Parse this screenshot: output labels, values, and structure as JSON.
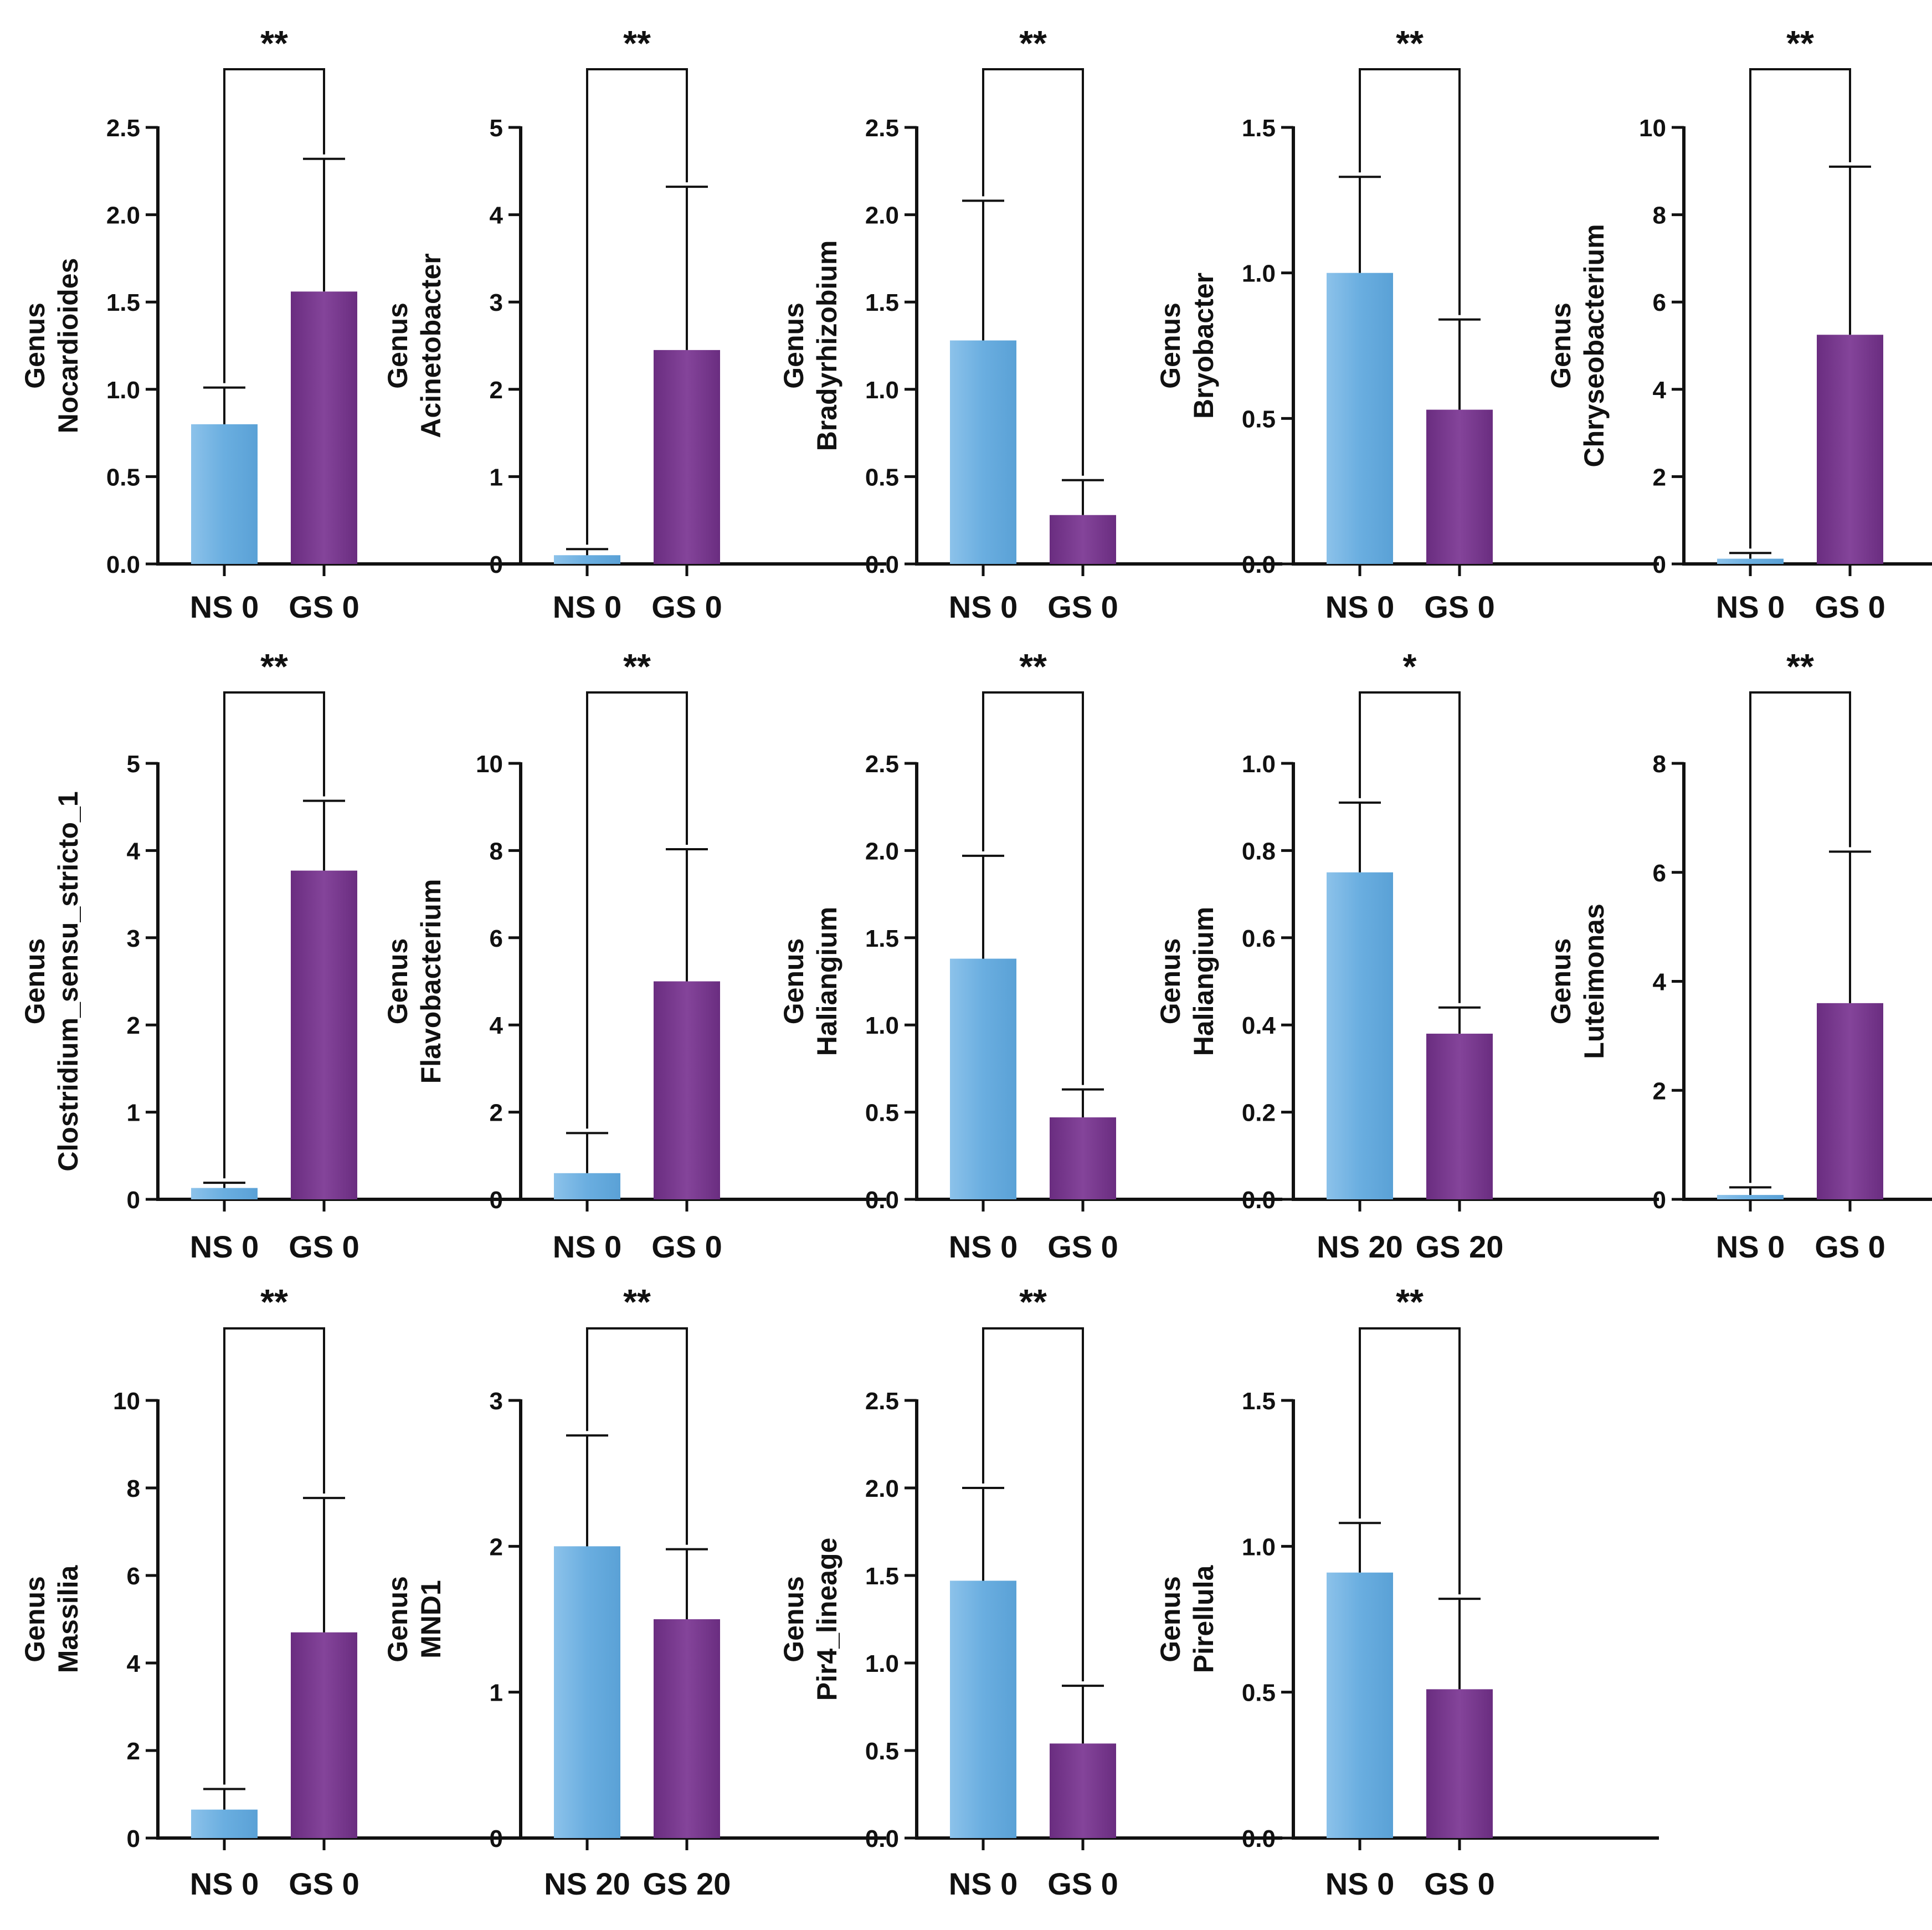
{
  "colors": {
    "ns": "#6aaee0",
    "gs": "#7b3b8c",
    "axis": "#111111"
  },
  "chart_data": [
    {
      "type": "bar",
      "ylabel_line1": "Genus",
      "ylabel_line2": "Nocardioides",
      "categories": [
        "NS 0",
        "GS 0"
      ],
      "values": [
        0.8,
        1.56
      ],
      "errors": [
        1.01,
        2.32
      ],
      "ylim": [
        0,
        2.5
      ],
      "ticks": [
        0,
        0.5,
        1,
        1.5,
        2,
        2.5
      ],
      "tick_labels": [
        "0.0",
        "0.5",
        "1.0",
        "1.5",
        "2.0",
        "2.5"
      ],
      "significance": "**"
    },
    {
      "type": "bar",
      "ylabel_line1": "Genus",
      "ylabel_line2": "Acinetobacter",
      "categories": [
        "NS 0",
        "GS 0"
      ],
      "values": [
        0.1,
        2.45
      ],
      "errors": [
        0.17,
        4.32
      ],
      "ylim": [
        0,
        5
      ],
      "ticks": [
        0,
        1,
        2,
        3,
        4,
        5
      ],
      "tick_labels": [
        "0",
        "1",
        "2",
        "3",
        "4",
        "5"
      ],
      "significance": "**"
    },
    {
      "type": "bar",
      "ylabel_line1": "Genus",
      "ylabel_line2": "Bradyrhizobium",
      "categories": [
        "NS 0",
        "GS 0"
      ],
      "values": [
        1.28,
        0.28
      ],
      "errors": [
        2.08,
        0.48
      ],
      "ylim": [
        0,
        2.5
      ],
      "ticks": [
        0,
        0.5,
        1,
        1.5,
        2,
        2.5
      ],
      "tick_labels": [
        "0.0",
        "0.5",
        "1.0",
        "1.5",
        "2.0",
        "2.5"
      ],
      "significance": "**"
    },
    {
      "type": "bar",
      "ylabel_line1": "Genus",
      "ylabel_line2": "Bryobacter",
      "categories": [
        "NS 0",
        "GS 0"
      ],
      "values": [
        1.0,
        0.53
      ],
      "errors": [
        1.33,
        0.84
      ],
      "ylim": [
        0,
        1.5
      ],
      "ticks": [
        0,
        0.5,
        1,
        1.5
      ],
      "tick_labels": [
        "0.0",
        "0.5",
        "1.0",
        "1.5"
      ],
      "significance": "**"
    },
    {
      "type": "bar",
      "ylabel_line1": "Genus",
      "ylabel_line2": "Chryseobacterium",
      "categories": [
        "NS 0",
        "GS 0"
      ],
      "values": [
        0.12,
        5.25
      ],
      "errors": [
        0.25,
        9.1
      ],
      "ylim": [
        0,
        10
      ],
      "ticks": [
        0,
        2,
        4,
        6,
        8,
        10
      ],
      "tick_labels": [
        "0",
        "2",
        "4",
        "6",
        "8",
        "10"
      ],
      "significance": "**"
    },
    {
      "type": "bar",
      "ylabel_line1": "Genus",
      "ylabel_line2": "Clostridium_sensu_stricto_1",
      "categories": [
        "NS 0",
        "GS 0"
      ],
      "values": [
        0.13,
        3.77
      ],
      "errors": [
        0.19,
        4.57
      ],
      "ylim": [
        0,
        5
      ],
      "ticks": [
        0,
        1,
        2,
        3,
        4,
        5
      ],
      "tick_labels": [
        "0",
        "1",
        "2",
        "3",
        "4",
        "5"
      ],
      "significance": "**"
    },
    {
      "type": "bar",
      "ylabel_line1": "Genus",
      "ylabel_line2": "Flavobacterium",
      "categories": [
        "NS 0",
        "GS 0"
      ],
      "values": [
        0.6,
        5.0
      ],
      "errors": [
        1.52,
        8.03
      ],
      "ylim": [
        0,
        10
      ],
      "ticks": [
        0,
        2,
        4,
        6,
        8,
        10
      ],
      "tick_labels": [
        "0",
        "2",
        "4",
        "6",
        "8",
        "10"
      ],
      "significance": "**"
    },
    {
      "type": "bar",
      "ylabel_line1": "Genus",
      "ylabel_line2": "Haliangium",
      "categories": [
        "NS 0",
        "GS 0"
      ],
      "values": [
        1.38,
        0.47
      ],
      "errors": [
        1.97,
        0.63
      ],
      "ylim": [
        0,
        2.5
      ],
      "ticks": [
        0,
        0.5,
        1,
        1.5,
        2,
        2.5
      ],
      "tick_labels": [
        "0.0",
        "0.5",
        "1.0",
        "1.5",
        "2.0",
        "2.5"
      ],
      "significance": "**"
    },
    {
      "type": "bar",
      "ylabel_line1": "Genus",
      "ylabel_line2": "Haliangium",
      "categories": [
        "NS 20",
        "GS 20"
      ],
      "values": [
        0.75,
        0.38
      ],
      "errors": [
        0.91,
        0.44
      ],
      "ylim": [
        0,
        1.0
      ],
      "ticks": [
        0,
        0.2,
        0.4,
        0.6,
        0.8,
        1.0
      ],
      "tick_labels": [
        "0.0",
        "0.2",
        "0.4",
        "0.6",
        "0.8",
        "1.0"
      ],
      "significance": "*"
    },
    {
      "type": "bar",
      "ylabel_line1": "Genus",
      "ylabel_line2": "Luteimonas",
      "categories": [
        "NS 0",
        "GS 0"
      ],
      "values": [
        0.08,
        3.6
      ],
      "errors": [
        0.22,
        6.38
      ],
      "ylim": [
        0,
        8
      ],
      "ticks": [
        0,
        2,
        4,
        6,
        8
      ],
      "tick_labels": [
        "0",
        "2",
        "4",
        "6",
        "8"
      ],
      "significance": "**"
    },
    {
      "type": "bar",
      "ylabel_line1": "Genus",
      "ylabel_line2": "Massilia",
      "categories": [
        "NS 0",
        "GS 0"
      ],
      "values": [
        0.65,
        4.7
      ],
      "errors": [
        1.12,
        7.77
      ],
      "ylim": [
        0,
        10
      ],
      "ticks": [
        0,
        2,
        4,
        6,
        8,
        10
      ],
      "tick_labels": [
        "0",
        "2",
        "4",
        "6",
        "8",
        "10"
      ],
      "significance": "**"
    },
    {
      "type": "bar",
      "ylabel_line1": "Genus",
      "ylabel_line2": "MND1",
      "categories": [
        "NS 20",
        "GS 20"
      ],
      "values": [
        2.0,
        1.5
      ],
      "errors": [
        2.76,
        1.98
      ],
      "ylim": [
        0,
        3
      ],
      "ticks": [
        0,
        1,
        2,
        3
      ],
      "tick_labels": [
        "0",
        "1",
        "2",
        "3"
      ],
      "significance": "**"
    },
    {
      "type": "bar",
      "ylabel_line1": "Genus",
      "ylabel_line2": "Pir4_lineage",
      "categories": [
        "NS 0",
        "GS 0"
      ],
      "values": [
        1.47,
        0.54
      ],
      "errors": [
        2.0,
        0.87
      ],
      "ylim": [
        0,
        2.5
      ],
      "ticks": [
        0,
        0.5,
        1,
        1.5,
        2,
        2.5
      ],
      "tick_labels": [
        "0.0",
        "0.5",
        "1.0",
        "1.5",
        "2.0",
        "2.5"
      ],
      "significance": "**"
    },
    {
      "type": "bar",
      "ylabel_line1": "Genus",
      "ylabel_line2": "Pirellula",
      "categories": [
        "NS 0",
        "GS 0"
      ],
      "values": [
        0.91,
        0.51
      ],
      "errors": [
        1.08,
        0.82
      ],
      "ylim": [
        0,
        1.5
      ],
      "ticks": [
        0,
        0.5,
        1,
        1.5
      ],
      "tick_labels": [
        "0.0",
        "0.5",
        "1.0",
        "1.5"
      ],
      "significance": "**"
    }
  ]
}
